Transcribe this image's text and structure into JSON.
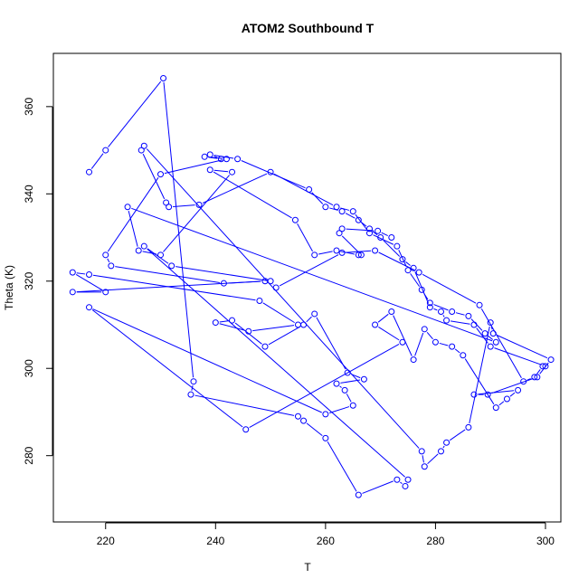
{
  "chart_data": {
    "type": "scatter",
    "title": "ATOM2 Southbound T",
    "xlabel": "T",
    "ylabel": "Theta (K)",
    "xlim": [
      210.5,
      302.8
    ],
    "ylim": [
      264.8,
      372.2
    ],
    "xticks": [
      220,
      240,
      260,
      280,
      300
    ],
    "yticks": [
      280,
      300,
      320,
      340,
      360
    ],
    "color": "#0000ff",
    "marker": "open-circle",
    "connect": "line",
    "grid": false,
    "series": [
      {
        "points": [
          [
            217,
            345
          ],
          [
            220,
            350
          ],
          [
            230.5,
            366.5
          ],
          [
            236,
            297
          ],
          [
            235.5,
            294
          ],
          [
            255,
            289
          ],
          [
            256,
            288
          ],
          [
            260,
            284
          ],
          [
            266,
            271
          ],
          [
            273,
            274.5
          ],
          [
            274.5,
            273
          ],
          [
            275,
            274.5
          ],
          [
            227,
            328
          ],
          [
            232,
            323.5
          ],
          [
            250,
            320
          ],
          [
            251,
            318.5
          ],
          [
            263,
            326.5
          ],
          [
            269,
            327
          ],
          [
            277,
            322
          ],
          [
            288,
            314.5
          ],
          [
            296,
            297
          ],
          [
            298,
            298
          ],
          [
            299.5,
            300.5
          ],
          [
            300,
            300.5
          ],
          [
            290,
            305
          ],
          [
            287,
            310
          ],
          [
            282,
            311
          ],
          [
            281,
            313
          ],
          [
            279,
            314
          ],
          [
            276,
            323
          ],
          [
            274,
            325
          ],
          [
            270,
            330
          ],
          [
            268,
            332
          ],
          [
            266,
            334
          ],
          [
            263,
            336
          ],
          [
            260,
            337
          ],
          [
            257,
            341
          ],
          [
            244,
            348
          ],
          [
            239,
            349
          ],
          [
            241,
            348
          ],
          [
            238,
            348.5
          ],
          [
            242,
            348
          ],
          [
            230,
            344.5
          ],
          [
            220,
            326
          ],
          [
            221,
            323.5
          ],
          [
            241.5,
            319.5
          ],
          [
            249,
            320
          ],
          [
            214,
            317.5
          ],
          [
            220,
            317.5
          ],
          [
            214,
            322
          ],
          [
            217,
            321.5
          ],
          [
            248,
            315.5
          ],
          [
            255,
            310
          ],
          [
            246,
            308.5
          ],
          [
            240,
            310.5
          ],
          [
            243,
            311
          ],
          [
            249,
            305
          ],
          [
            256,
            310
          ],
          [
            258,
            312.5
          ],
          [
            264,
            299
          ],
          [
            267,
            297.5
          ],
          [
            262,
            296.5
          ],
          [
            263.5,
            295
          ],
          [
            265,
            291.5
          ],
          [
            260,
            289.5
          ],
          [
            217,
            314
          ],
          [
            245.5,
            286
          ],
          [
            274,
            306
          ],
          [
            269,
            310
          ],
          [
            272,
            313
          ],
          [
            276,
            302
          ],
          [
            278,
            309
          ],
          [
            280,
            306
          ],
          [
            283,
            305
          ],
          [
            285,
            303
          ],
          [
            291,
            291
          ],
          [
            293,
            293
          ],
          [
            295,
            295
          ],
          [
            287,
            294
          ],
          [
            289.5,
            294
          ],
          [
            298.5,
            298
          ],
          [
            301,
            302
          ],
          [
            290.5,
            308
          ],
          [
            290,
            310.5
          ],
          [
            286,
            286.5
          ],
          [
            282,
            283
          ],
          [
            281,
            281
          ],
          [
            278,
            277.5
          ],
          [
            277.5,
            281
          ],
          [
            227,
            351
          ],
          [
            226.5,
            350
          ],
          [
            231,
            338
          ],
          [
            231.5,
            337
          ],
          [
            237,
            337.5
          ],
          [
            250,
            345
          ],
          [
            262,
            337
          ],
          [
            265,
            336
          ],
          [
            268,
            331
          ],
          [
            273,
            328
          ],
          [
            275,
            322.5
          ],
          [
            277.5,
            318
          ],
          [
            279,
            315
          ],
          [
            283,
            313
          ],
          [
            286,
            312
          ],
          [
            289,
            308
          ],
          [
            291,
            306
          ],
          [
            224,
            337
          ],
          [
            226,
            327
          ],
          [
            230,
            326
          ],
          [
            243,
            345
          ],
          [
            239,
            345.5
          ],
          [
            254.5,
            334
          ],
          [
            258,
            326
          ],
          [
            262,
            327
          ],
          [
            266,
            326
          ],
          [
            266.5,
            326
          ],
          [
            262.5,
            331
          ],
          [
            263,
            332
          ],
          [
            269.5,
            331.5
          ],
          [
            272,
            330
          ]
        ]
      }
    ]
  }
}
